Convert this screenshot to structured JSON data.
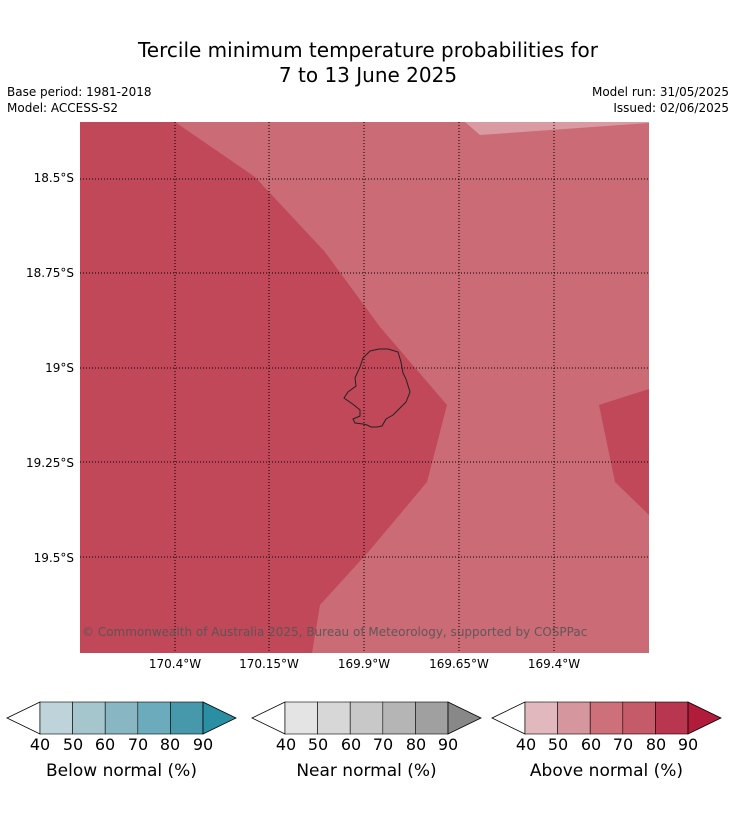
{
  "title_line1": "Tercile minimum temperature probabilities for",
  "title_line2": "7 to 13 June 2025",
  "base_period": "Base period: 1981-2018",
  "model": "Model: ACCESS-S2",
  "model_run": "Model run: 31/05/2025",
  "issued": "Issued: 02/06/2025",
  "copyright": "© Commonwealth of Australia 2025, Bureau of Meteorology, supported by COSPPac",
  "lat_ticks": [
    "18.5°S",
    "18.75°S",
    "19°S",
    "19.25°S",
    "19.5°S"
  ],
  "lon_ticks": [
    "170.4°W",
    "170.15°W",
    "169.9°W",
    "169.65°W",
    "169.4°W"
  ],
  "colorbars": [
    {
      "label": "Below normal (%)",
      "ticks": [
        "40",
        "50",
        "60",
        "70",
        "80",
        "90"
      ],
      "colors": [
        "#bfd3da",
        "#a5c6cc",
        "#88b6c2",
        "#6cabbb",
        "#4798ab",
        "#2b8fa3"
      ]
    },
    {
      "label": "Near normal (%)",
      "ticks": [
        "40",
        "50",
        "60",
        "70",
        "80",
        "90"
      ],
      "colors": [
        "#e4e4e4",
        "#d7d7d7",
        "#c8c8c8",
        "#b5b5b5",
        "#a0a0a0",
        "#888888"
      ]
    },
    {
      "label": "Above normal (%)",
      "ticks": [
        "40",
        "50",
        "60",
        "70",
        "80",
        "90"
      ],
      "colors": [
        "#e0b8bd",
        "#d6969e",
        "#cd707a",
        "#c55a68",
        "#b83650",
        "#b01c3a"
      ]
    }
  ],
  "map_colors": {
    "light": "#cb6b76",
    "dark": "#c04858",
    "lightest": "#d99aa2",
    "coast": "#222222"
  }
}
